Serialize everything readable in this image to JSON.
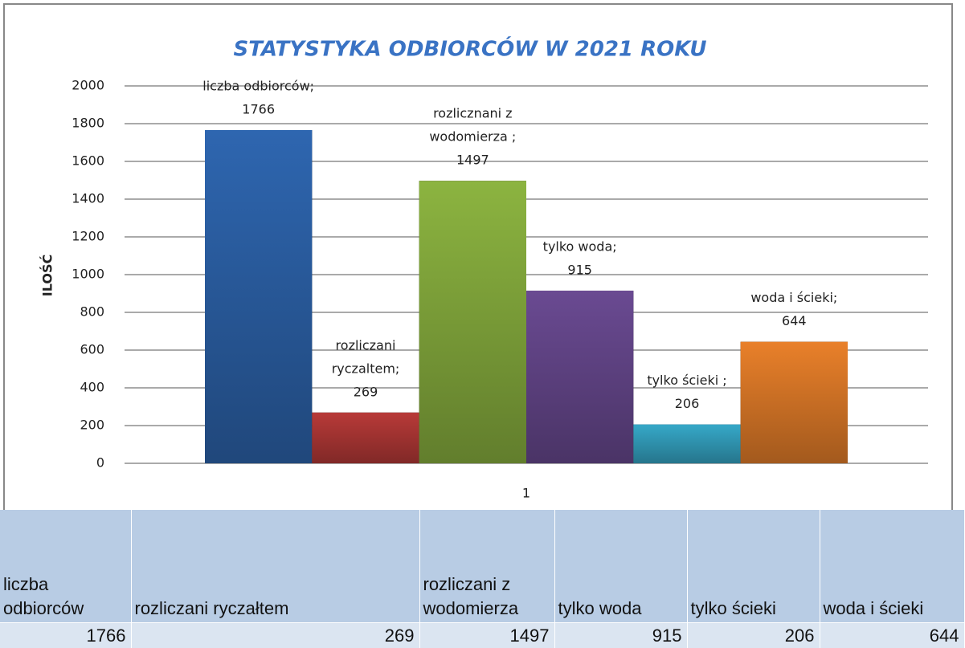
{
  "chart_data": {
    "type": "bar",
    "title": "STATYSTYKA ODBIORCÓW  W 2021 ROKU",
    "y_label": "ILOŚĆ",
    "categories": [
      "1"
    ],
    "series": [
      {
        "name": "liczba odbiorców",
        "label_lines": [
          "liczba odbiorców;"
        ],
        "color": "#2e66b0",
        "values": [
          1766
        ]
      },
      {
        "name": "rozliczani ryczaltem",
        "label_lines": [
          "rozliczani",
          "ryczaltem;"
        ],
        "color": "#b83a38",
        "values": [
          269
        ]
      },
      {
        "name": "rozlicznani z wodomierza",
        "label_lines": [
          "rozlicznani z",
          "wodomierza ;"
        ],
        "color": "#8cb440",
        "values": [
          1497
        ]
      },
      {
        "name": "tylko woda",
        "label_lines": [
          "tylko woda;"
        ],
        "color": "#6a4a92",
        "values": [
          915
        ]
      },
      {
        "name": "tylko ścieki",
        "label_lines": [
          "tylko ścieki ;"
        ],
        "color": "#36a8c8",
        "values": [
          206
        ]
      },
      {
        "name": "woda i ścieki",
        "label_lines": [
          "woda i ścieki;"
        ],
        "color": "#e9802a",
        "values": [
          644
        ]
      }
    ],
    "ylim": [
      0,
      2000
    ],
    "yticks": [
      0,
      200,
      400,
      600,
      800,
      1000,
      1200,
      1400,
      1600,
      1800,
      2000
    ],
    "grid": true
  },
  "table": {
    "header": [
      "liczba odbiorców",
      "rozliczani ryczałtem",
      "rozliczani z wodomierza",
      "tylko woda",
      "tylko ścieki",
      "woda i ścieki"
    ],
    "rows": [
      [
        1766,
        269,
        1497,
        915,
        206,
        644
      ]
    ]
  }
}
